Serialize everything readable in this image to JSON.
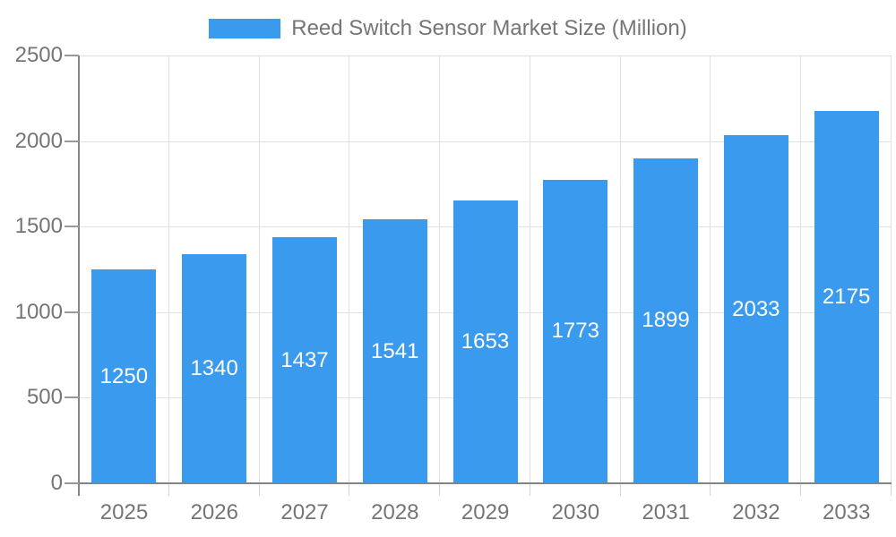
{
  "chart_data": {
    "type": "bar",
    "title": "Reed Switch Sensor Market Size (Million)",
    "categories": [
      "2025",
      "2026",
      "2027",
      "2028",
      "2029",
      "2030",
      "2031",
      "2032",
      "2033"
    ],
    "series": [
      {
        "name": "Reed Switch Sensor Market Size (Million)",
        "values": [
          1250,
          1340,
          1437,
          1541,
          1653,
          1773,
          1899,
          2033,
          2175
        ]
      }
    ],
    "values": [
      1250,
      1340,
      1437,
      1541,
      1653,
      1773,
      1899,
      2033,
      2175
    ],
    "bar_value_labels": [
      "1250",
      "1340",
      "1437",
      "1541",
      "1653",
      "1773",
      "1899",
      "2033",
      "2175"
    ],
    "xlabel": "",
    "ylabel": "",
    "ylim": [
      0,
      2500
    ],
    "yticks": [
      0,
      500,
      1000,
      1500,
      2000,
      2500
    ],
    "grid": true,
    "legend_position": "top",
    "colors": {
      "bar": "#399aee",
      "grid": "#e0e0e0",
      "axis": "#848484",
      "tick": "#999999",
      "text": "#757575",
      "bar_label_text": "#ffffff"
    }
  }
}
